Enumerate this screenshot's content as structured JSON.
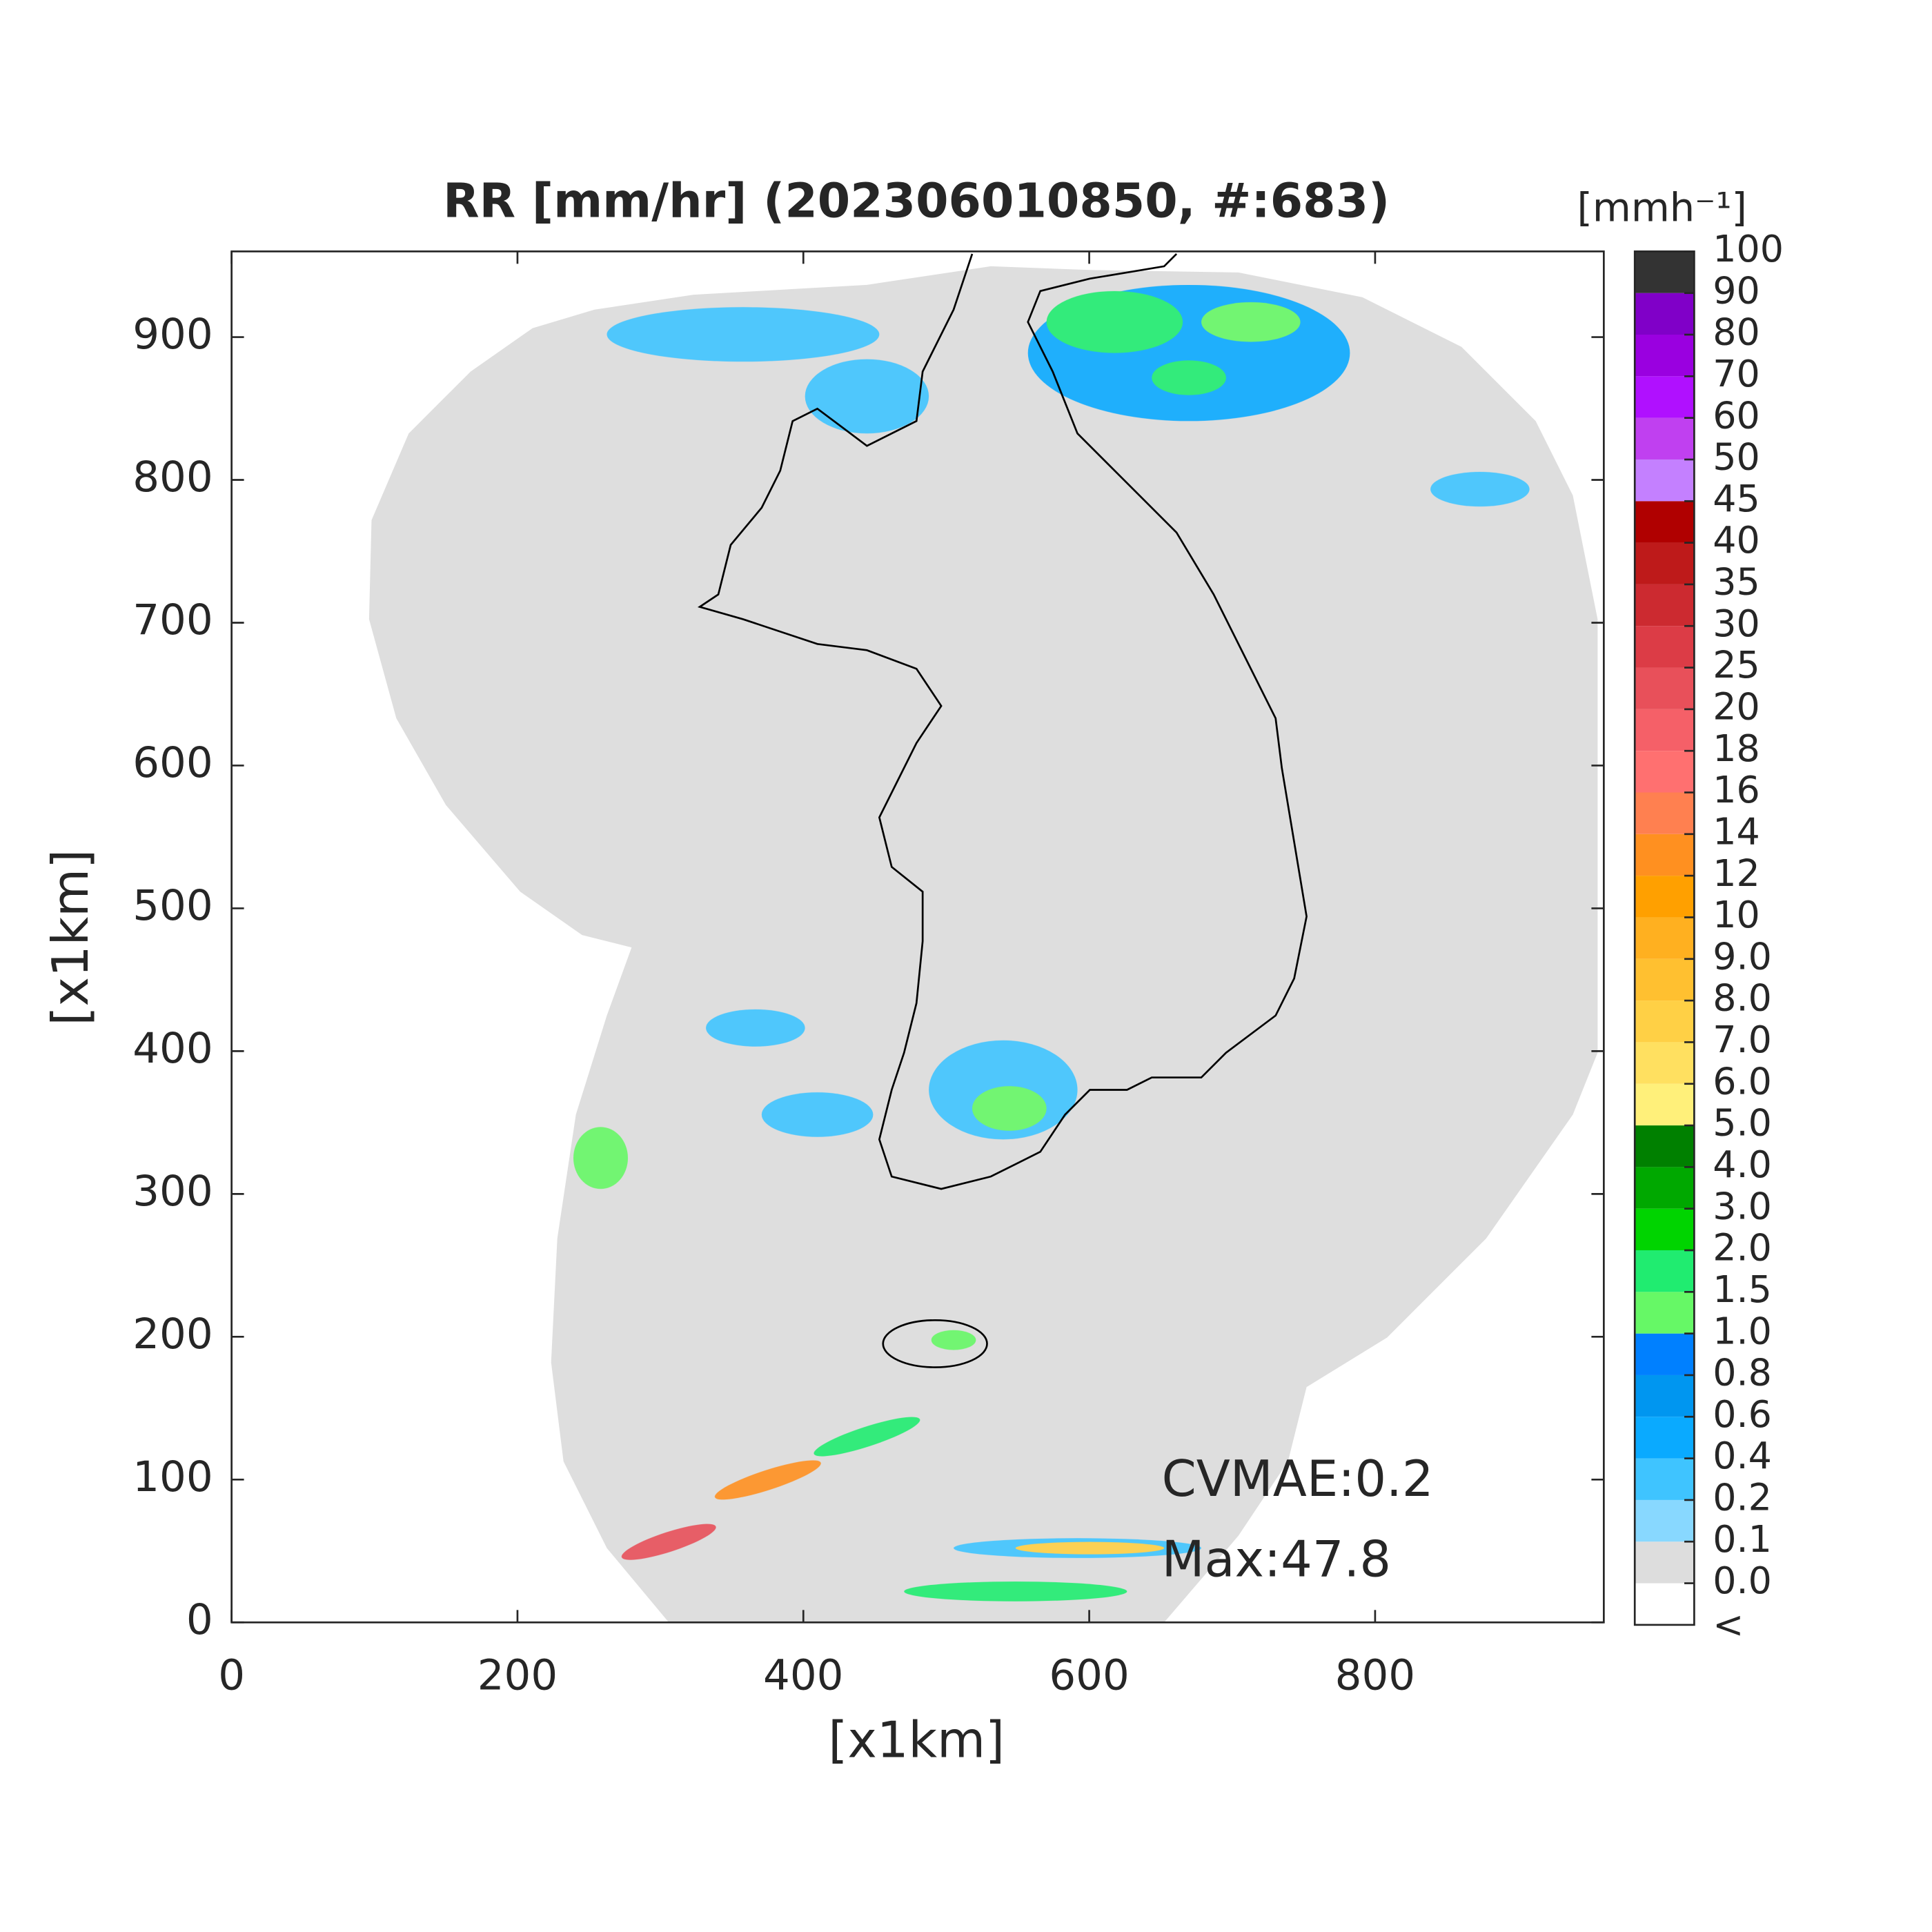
{
  "chart_data": {
    "type": "radar-map",
    "title": "RR [mm/hr] (202306010850, #:683)",
    "xlabel": "[x1km]",
    "ylabel": "[x1km]",
    "xlim": [
      0,
      960
    ],
    "ylim": [
      0,
      960
    ],
    "xticks": [
      0,
      200,
      400,
      600,
      800
    ],
    "yticks": [
      0,
      100,
      200,
      300,
      400,
      500,
      600,
      700,
      800,
      900
    ],
    "annotations": [
      "CVMAE:0.2",
      "Max:47.8"
    ],
    "colorbar": {
      "label": "[mmh⁻¹]",
      "under_label": "<",
      "under_color": "#ffffff",
      "ticks": [
        {
          "value": 0,
          "label": "0.0"
        },
        0.1,
        0.2,
        0.4,
        0.6,
        0.8,
        {
          "value": 1,
          "label": "1.0"
        },
        1.5,
        {
          "value": 2,
          "label": "2.0"
        },
        {
          "value": 3,
          "label": "3.0"
        },
        {
          "value": 4,
          "label": "4.0"
        },
        {
          "value": 5,
          "label": "5.0"
        },
        {
          "value": 6,
          "label": "6.0"
        },
        {
          "value": 7,
          "label": "7.0"
        },
        {
          "value": 8,
          "label": "8.0"
        },
        {
          "value": 9,
          "label": "9.0"
        },
        10,
        12,
        14,
        16,
        18,
        20,
        25,
        30,
        35,
        40,
        45,
        50,
        60,
        70,
        80,
        90,
        100
      ],
      "colors": [
        "#dddddd",
        "#88d8ff",
        "#3fc4ff",
        "#0aaaff",
        "#0096f0",
        "#0080ff",
        "#66f866",
        "#20ec70",
        "#00d400",
        "#00a800",
        "#008000",
        "#fff07a",
        "#ffe060",
        "#ffd045",
        "#ffc030",
        "#ffb020",
        "#ffa000",
        "#ff9020",
        "#ff8050",
        "#ff7070",
        "#f56068",
        "#e8505a",
        "#dc3c46",
        "#cc2a30",
        "#be1a1a",
        "#b00000",
        "#c480ff",
        "#c040f0",
        "#b010ff",
        "#9a00e0",
        "#8000c8",
        "#333333"
      ]
    }
  }
}
